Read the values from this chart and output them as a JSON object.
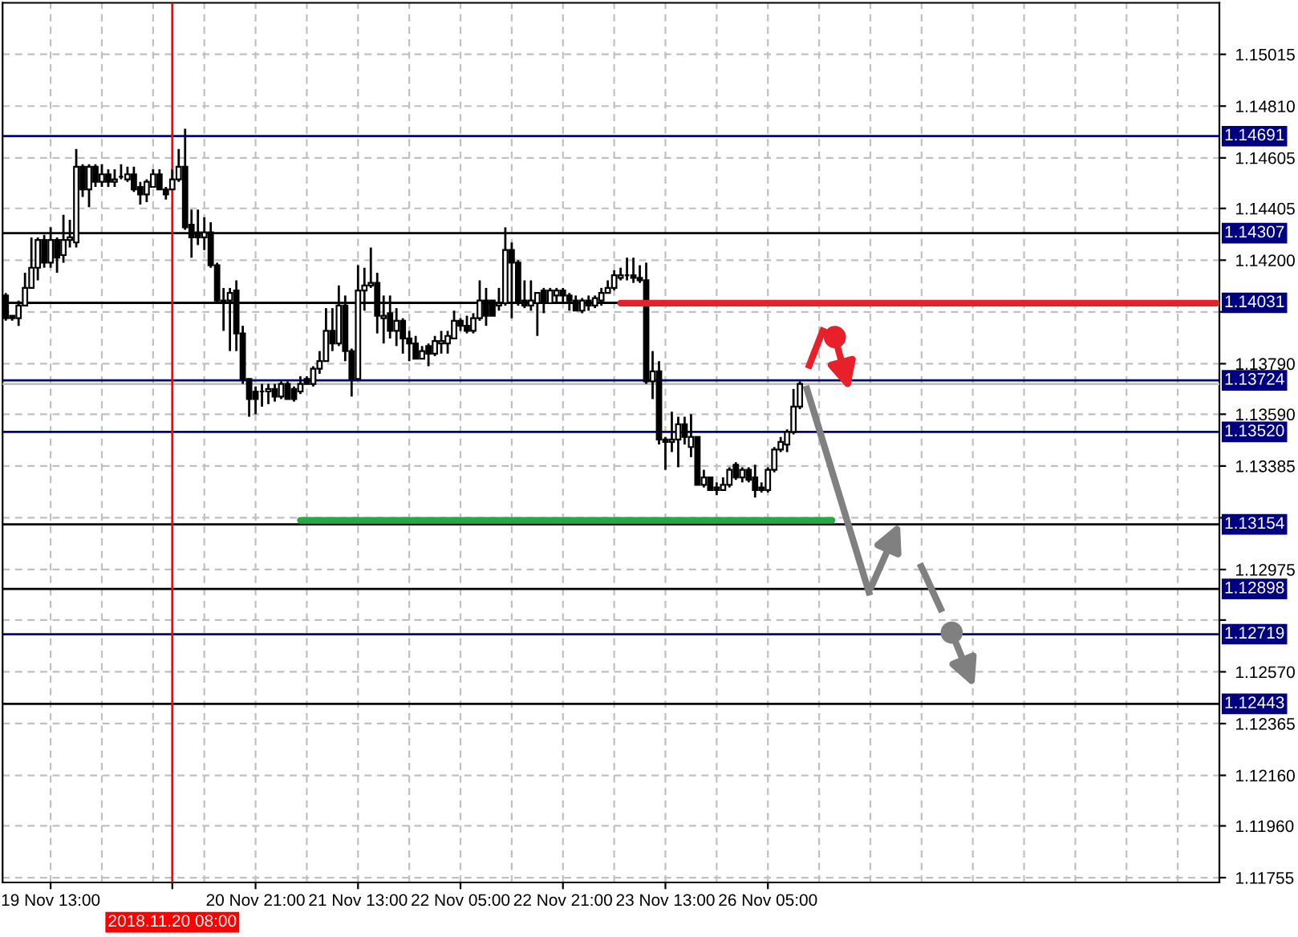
{
  "chart_data": {
    "type": "candlestick",
    "categories": [
      null,
      null,
      null,
      null,
      null,
      null,
      null,
      "19 Nov 13:00",
      null,
      null,
      null,
      null,
      null,
      null,
      null,
      null,
      null,
      null,
      null,
      null,
      null,
      null,
      null,
      null,
      null,
      null,
      "2018.11.20 08:00",
      null,
      null,
      null,
      null,
      null,
      null,
      null,
      null,
      null,
      null,
      null,
      null,
      "20 Nov 21:00",
      null,
      null,
      null,
      null,
      null,
      null,
      null,
      null,
      null,
      null,
      null,
      null,
      null,
      null,
      null,
      "21 Nov 13:00",
      null,
      null,
      null,
      null,
      null,
      null,
      null,
      null,
      null,
      null,
      null,
      null,
      null,
      null,
      null,
      "22 Nov 05:00",
      null,
      null,
      null,
      null,
      null,
      null,
      null,
      null,
      null,
      null,
      null,
      null,
      null,
      null,
      null,
      "22 Nov 21:00",
      null,
      null,
      null,
      null,
      null,
      null,
      null,
      null,
      null,
      null,
      null,
      null,
      null,
      null,
      null,
      "23 Nov 13:00",
      null,
      null,
      null,
      null,
      null,
      null,
      null,
      null,
      null,
      null,
      null,
      null,
      null,
      null,
      null,
      "26 Nov 05:00",
      null,
      null,
      null,
      null,
      null,
      null,
      null,
      null,
      null,
      null,
      null,
      null,
      null,
      null,
      null,
      null,
      null,
      null,
      null,
      null,
      null,
      null,
      null,
      null,
      null,
      null,
      null,
      null,
      null,
      null,
      null,
      null,
      null,
      null,
      null,
      null,
      null,
      null,
      null,
      null,
      null,
      null,
      null,
      null,
      null,
      null,
      null,
      null,
      null,
      null,
      null,
      null,
      null,
      null,
      null,
      null,
      null,
      null,
      null,
      null,
      null,
      null,
      null,
      null,
      null,
      null,
      null,
      null,
      null,
      null
    ],
    "ohlc": [
      [
        1.1406,
        1.1407,
        1.1396,
        1.1397
      ],
      [
        1.1398,
        1.1398,
        1.1396,
        1.1397
      ],
      [
        1.1397,
        1.1404,
        1.1394,
        1.1402
      ],
      [
        1.1402,
        1.1415,
        1.1402,
        1.1409
      ],
      [
        1.1409,
        1.1429,
        1.1409,
        1.1417
      ],
      [
        1.1417,
        1.1429,
        1.1412,
        1.1428
      ],
      [
        1.1428,
        1.143,
        1.1417,
        1.1419
      ],
      [
        1.1419,
        1.1433,
        1.1417,
        1.1428
      ],
      [
        1.1428,
        1.1429,
        1.1415,
        1.1421
      ],
      [
        1.1422,
        1.1438,
        1.1419,
        1.1428
      ],
      [
        1.1428,
        1.1436,
        1.1425,
        1.1429
      ],
      [
        1.1427,
        1.1464,
        1.1425,
        1.1457
      ],
      [
        1.1457,
        1.1458,
        1.1445,
        1.1448
      ],
      [
        1.1448,
        1.1458,
        1.1441,
        1.1457
      ],
      [
        1.1457,
        1.1458,
        1.1449,
        1.1451
      ],
      [
        1.1451,
        1.1458,
        1.1449,
        1.1454
      ],
      [
        1.1454,
        1.1456,
        1.1449,
        1.1451
      ],
      [
        1.1451,
        1.1456,
        1.1449,
        1.1452
      ],
      [
        1.1453,
        1.1458,
        1.1452,
        1.1453
      ],
      [
        1.1452,
        1.1457,
        1.1451,
        1.1454
      ],
      [
        1.1454,
        1.1457,
        1.1447,
        1.1448
      ],
      [
        1.1449,
        1.1451,
        1.1442,
        1.1446
      ],
      [
        1.1446,
        1.1452,
        1.1443,
        1.1451
      ],
      [
        1.1449,
        1.1456,
        1.1449,
        1.1454
      ],
      [
        1.1454,
        1.1456,
        1.1448,
        1.1448
      ],
      [
        1.1448,
        1.1449,
        1.1444,
        1.1446
      ],
      [
        1.1448,
        1.1456,
        1.1448,
        1.1452
      ],
      [
        1.1452,
        1.1464,
        1.1451,
        1.1457
      ],
      [
        1.1457,
        1.1472,
        1.1432,
        1.1433
      ],
      [
        1.1434,
        1.144,
        1.1421,
        1.1429
      ],
      [
        1.1431,
        1.144,
        1.1426,
        1.1429
      ],
      [
        1.1429,
        1.1437,
        1.1424,
        1.1431
      ],
      [
        1.1431,
        1.1435,
        1.1417,
        1.1418
      ],
      [
        1.1418,
        1.1419,
        1.1403,
        1.1404
      ],
      [
        1.1404,
        1.1409,
        1.1392,
        1.1403
      ],
      [
        1.1404,
        1.1409,
        1.1384,
        1.1407
      ],
      [
        1.1408,
        1.1412,
        1.1384,
        1.1391
      ],
      [
        1.1391,
        1.1394,
        1.1371,
        1.1373
      ],
      [
        1.1373,
        1.1373,
        1.1358,
        1.1365
      ],
      [
        1.1368,
        1.137,
        1.1359,
        1.1365
      ],
      [
        1.1368,
        1.1371,
        1.1362,
        1.1368
      ],
      [
        1.1368,
        1.1371,
        1.1363,
        1.1369
      ],
      [
        1.1369,
        1.1371,
        1.1364,
        1.1366
      ],
      [
        1.1366,
        1.1372,
        1.1365,
        1.1371
      ],
      [
        1.1371,
        1.1372,
        1.1365,
        1.1365
      ],
      [
        1.1369,
        1.137,
        1.1364,
        1.1365
      ],
      [
        1.1368,
        1.1374,
        1.1367,
        1.1371
      ],
      [
        1.1373,
        1.1374,
        1.1371,
        1.1371
      ],
      [
        1.1371,
        1.1378,
        1.137,
        1.1377
      ],
      [
        1.1377,
        1.1384,
        1.1375,
        1.138
      ],
      [
        1.138,
        1.1401,
        1.138,
        1.1392
      ],
      [
        1.1392,
        1.1401,
        1.1384,
        1.1387
      ],
      [
        1.1387,
        1.141,
        1.1386,
        1.1402
      ],
      [
        1.1402,
        1.1406,
        1.138,
        1.1384
      ],
      [
        1.1384,
        1.1385,
        1.1366,
        1.1373
      ],
      [
        1.1373,
        1.1418,
        1.1373,
        1.1408
      ],
      [
        1.1408,
        1.1417,
        1.14,
        1.141
      ],
      [
        1.141,
        1.1425,
        1.1409,
        1.1411
      ],
      [
        1.1411,
        1.1415,
        1.1391,
        1.1398
      ],
      [
        1.1397,
        1.1406,
        1.1387,
        1.1398
      ],
      [
        1.1399,
        1.1406,
        1.1389,
        1.1392
      ],
      [
        1.1392,
        1.1401,
        1.1386,
        1.1396
      ],
      [
        1.1396,
        1.1397,
        1.1383,
        1.1389
      ],
      [
        1.1389,
        1.1392,
        1.138,
        1.1387
      ],
      [
        1.1387,
        1.139,
        1.1381,
        1.1381
      ],
      [
        1.1381,
        1.1386,
        1.1381,
        1.1384
      ],
      [
        1.1386,
        1.1387,
        1.1378,
        1.1383
      ],
      [
        1.1383,
        1.139,
        1.1382,
        1.1388
      ],
      [
        1.1387,
        1.1392,
        1.1383,
        1.1388
      ],
      [
        1.1387,
        1.1392,
        1.1383,
        1.139
      ],
      [
        1.1389,
        1.14,
        1.1389,
        1.1396
      ],
      [
        1.1396,
        1.1397,
        1.1392,
        1.1394
      ],
      [
        1.1394,
        1.1398,
        1.1391,
        1.1392
      ],
      [
        1.1392,
        1.1399,
        1.1391,
        1.1397
      ],
      [
        1.1397,
        1.1412,
        1.1396,
        1.1404
      ],
      [
        1.1404,
        1.1409,
        1.1394,
        1.1398
      ],
      [
        1.1404,
        1.1404,
        1.1398,
        1.1398
      ],
      [
        1.1402,
        1.1409,
        1.14,
        1.1403
      ],
      [
        1.1403,
        1.1433,
        1.1402,
        1.1424
      ],
      [
        1.1424,
        1.1427,
        1.1397,
        1.1419
      ],
      [
        1.1419,
        1.142,
        1.1402,
        1.1403
      ],
      [
        1.1404,
        1.1412,
        1.1401,
        1.1402
      ],
      [
        1.1402,
        1.1412,
        1.14,
        1.1404
      ],
      [
        1.1403,
        1.1407,
        1.139,
        1.1407
      ],
      [
        1.1408,
        1.1409,
        1.1399,
        1.1403
      ],
      [
        1.1403,
        1.1409,
        1.1403,
        1.1408
      ],
      [
        1.1406,
        1.1409,
        1.1403,
        1.1408
      ],
      [
        1.1408,
        1.1409,
        1.1403,
        1.1406
      ],
      [
        1.1406,
        1.1407,
        1.14,
        1.1404
      ],
      [
        1.1404,
        1.1406,
        1.14,
        1.14
      ],
      [
        1.14,
        1.1405,
        1.1399,
        1.1404
      ],
      [
        1.1404,
        1.1406,
        1.14,
        1.1402
      ],
      [
        1.1402,
        1.1406,
        1.1401,
        1.1405
      ],
      [
        1.1404,
        1.1409,
        1.1402,
        1.1407
      ],
      [
        1.1407,
        1.1412,
        1.1407,
        1.1409
      ],
      [
        1.1409,
        1.1416,
        1.1408,
        1.1414
      ],
      [
        1.1413,
        1.1417,
        1.1412,
        1.1414
      ],
      [
        1.1414,
        1.1421,
        1.1412,
        1.1414
      ],
      [
        1.1414,
        1.1421,
        1.1411,
        1.1413
      ],
      [
        1.1413,
        1.1418,
        1.1411,
        1.1412
      ],
      [
        1.1412,
        1.1419,
        1.1371,
        1.1372
      ],
      [
        1.1372,
        1.1384,
        1.1365,
        1.1376
      ],
      [
        1.1376,
        1.138,
        1.1347,
        1.1349
      ],
      [
        1.1349,
        1.135,
        1.1337,
        1.1348
      ],
      [
        1.1348,
        1.136,
        1.1344,
        1.1349
      ],
      [
        1.1349,
        1.1358,
        1.1338,
        1.1355
      ],
      [
        1.1355,
        1.1358,
        1.1347,
        1.135
      ],
      [
        1.1346,
        1.1359,
        1.1342,
        1.135
      ],
      [
        1.135,
        1.135,
        1.1331,
        1.1331
      ],
      [
        1.1331,
        1.1337,
        1.133,
        1.1334
      ],
      [
        1.1334,
        1.1334,
        1.1329,
        1.1329
      ],
      [
        1.133,
        1.1332,
        1.1327,
        1.1329
      ],
      [
        1.1329,
        1.1334,
        1.1329,
        1.1331
      ],
      [
        1.1331,
        1.1338,
        1.133,
        1.1337
      ],
      [
        1.1339,
        1.134,
        1.1333,
        1.1334
      ],
      [
        1.1334,
        1.1338,
        1.1332,
        1.1337
      ],
      [
        1.1337,
        1.1338,
        1.1332,
        1.1333
      ],
      [
        1.1334,
        1.1339,
        1.1326,
        1.1329
      ],
      [
        1.133,
        1.1332,
        1.1328,
        1.1329
      ],
      [
        1.1329,
        1.1338,
        1.1328,
        1.1337
      ],
      [
        1.1337,
        1.1346,
        1.1336,
        1.1345
      ],
      [
        1.1345,
        1.135,
        1.1344,
        1.1348
      ],
      [
        1.1347,
        1.1353,
        1.1344,
        1.1352
      ],
      [
        1.1352,
        1.1369,
        1.1351,
        1.1362
      ],
      [
        1.1362,
        1.1372,
        1.1361,
        1.1371
      ],
      null,
      null,
      null,
      null,
      null,
      null,
      null,
      null,
      null,
      null,
      null,
      null,
      null,
      null,
      null,
      null,
      null,
      null,
      null,
      null,
      null,
      null,
      null,
      null,
      null,
      null,
      null,
      null,
      null,
      null,
      null,
      null,
      null,
      null,
      null,
      null,
      null,
      null,
      null,
      null,
      null,
      null,
      null,
      null,
      null,
      null,
      null,
      null,
      null,
      null,
      null,
      null,
      null,
      null,
      null,
      null,
      null,
      null,
      null,
      null,
      null,
      null,
      null,
      null,
      null
    ],
    "series": [
      {
        "type": "line",
        "color": "#e8202a",
        "values": [
          null,
          null,
          null,
          null,
          null,
          null,
          null,
          null,
          null,
          null,
          null,
          null,
          null,
          null,
          null,
          null,
          null,
          null,
          null,
          null,
          null,
          null,
          null,
          null,
          null,
          null,
          null,
          null,
          null,
          null,
          null,
          null,
          null,
          null,
          null,
          null,
          null,
          null,
          null,
          null,
          null,
          null,
          null,
          null,
          null,
          null,
          null,
          null,
          null,
          null,
          null,
          null,
          null,
          null,
          null,
          null,
          null,
          null,
          null,
          null,
          null,
          null,
          null,
          null,
          null,
          null,
          null,
          null,
          null,
          null,
          null,
          null,
          null,
          null,
          null,
          null,
          null,
          null,
          null,
          null,
          null,
          null,
          null,
          null,
          null,
          null,
          null,
          null,
          null,
          null,
          null,
          null,
          null,
          null,
          null,
          null,
          1.1403,
          1.1403,
          1.1403,
          1.1403,
          1.1403,
          1.1403,
          1.1403,
          1.1403,
          1.1403,
          1.1403,
          1.1403,
          1.1403,
          1.1403,
          1.1403,
          1.1403,
          1.1403,
          1.1403,
          1.1403,
          1.1403,
          1.1403,
          1.1403,
          1.1403,
          1.1403,
          1.1403,
          1.1403,
          1.1403,
          1.1403,
          1.1403,
          1.1403,
          1.1403,
          1.1403,
          1.1403,
          1.1403,
          1.1403,
          1.1403,
          1.1403,
          1.1403,
          1.1403,
          1.1403,
          1.1403,
          1.1403,
          1.1403,
          1.1403,
          1.1403,
          1.1403,
          1.1403,
          1.1403,
          1.1403,
          1.1403,
          1.1403,
          1.1403,
          1.1403,
          1.1403,
          1.1403,
          1.1403,
          1.1403,
          1.1403,
          1.1403,
          1.1403,
          1.1403,
          1.1403,
          1.1403,
          1.1403,
          1.1403,
          1.1403,
          1.1403,
          1.1403,
          1.1403,
          1.1403,
          1.1403,
          1.1403,
          1.1403,
          1.1403,
          1.1403,
          1.1403,
          1.1403,
          1.1403,
          1.1403,
          1.1403,
          1.1403,
          1.1403,
          1.1403,
          1.1403,
          1.1403,
          1.1403,
          1.1403,
          1.1403,
          1.1403,
          1.1403,
          1.1403,
          1.1403,
          1.1403,
          1.1403,
          1.1403
        ]
      },
      {
        "type": "line",
        "color": "#22aa44",
        "values": [
          null,
          null,
          null,
          null,
          null,
          null,
          null,
          null,
          null,
          null,
          null,
          null,
          null,
          null,
          null,
          null,
          null,
          null,
          null,
          null,
          null,
          null,
          null,
          null,
          null,
          null,
          null,
          null,
          null,
          null,
          null,
          null,
          null,
          null,
          null,
          null,
          null,
          null,
          null,
          null,
          null,
          null,
          null,
          null,
          null,
          null,
          1.1317,
          1.1317,
          1.1317,
          1.1317,
          1.1317,
          1.1317,
          1.1317,
          1.1317,
          1.1317,
          1.1317,
          1.1317,
          1.1317,
          1.1317,
          1.1317,
          1.1317,
          1.1317,
          1.1317,
          1.1317,
          1.1317,
          1.1317,
          1.1317,
          1.1317,
          1.1317,
          1.1317,
          1.1317,
          1.1317,
          1.1317,
          1.1317,
          1.1317,
          1.1317,
          1.1317,
          1.1317,
          1.1317,
          1.1317,
          1.1317,
          1.1317,
          1.1317,
          1.1317,
          1.1317,
          1.1317,
          1.1317,
          1.1317,
          1.1317,
          1.1317,
          1.1317,
          1.1317,
          1.1317,
          1.1317,
          1.1317,
          1.1317,
          1.1317,
          1.1317,
          1.1317,
          1.1317,
          1.1317,
          1.1317,
          1.1317,
          1.1317,
          1.1317,
          1.1317,
          1.1317,
          1.1317,
          1.1317,
          1.1317,
          1.1317,
          1.1317,
          1.1317,
          1.1317,
          1.1317,
          1.1317,
          1.1317,
          1.1317,
          1.1317,
          1.1317,
          1.1317,
          1.1317,
          1.1317,
          1.1317,
          1.1317,
          1.1317,
          1.1317,
          1.1317,
          1.1317,
          1.1317,
          null,
          null,
          null,
          null,
          null,
          null,
          null,
          null,
          null,
          null,
          null,
          null,
          null,
          null,
          null,
          null,
          null,
          null,
          null,
          null,
          null,
          null,
          null,
          null,
          null,
          null,
          null,
          null,
          null,
          null,
          null,
          null,
          null,
          null,
          null,
          null,
          null,
          null,
          null,
          null,
          null,
          null,
          null,
          null,
          null,
          null,
          null,
          null,
          null,
          null,
          null,
          null,
          null,
          null,
          null,
          null,
          null,
          null,
          null,
          null
        ]
      }
    ],
    "ylim": [
      1.11736,
      1.15219
    ],
    "yticks": [
      1.15015,
      {
        "value": 1.1481,
        "label": "1.14810"
      },
      1.14605,
      1.14405,
      {
        "value": 1.142,
        "label": "1.14200"
      },
      {
        "value": 1.13995,
        "label": null
      },
      {
        "value": 1.1379,
        "label": "1.13790"
      },
      {
        "value": 1.1359,
        "label": "1.13590"
      },
      1.13385,
      {
        "value": 1.1318,
        "label": null
      },
      1.12975,
      {
        "value": 1.12775,
        "label": null
      },
      {
        "value": 1.1257,
        "label": "1.12570"
      },
      1.12365,
      {
        "value": 1.1216,
        "label": "1.12160"
      },
      {
        "value": 1.1196,
        "label": "1.11960"
      },
      1.11755
    ],
    "ref_lines": [
      {
        "axis": "x",
        "value": "2018.11.20 08:00",
        "color": "#ff0000"
      },
      {
        "axis": "y",
        "value": 1.14691,
        "label": "1.14691",
        "color": "#000080"
      },
      {
        "axis": "y",
        "value": 1.14307,
        "label": "1.14307",
        "color": "#000000"
      },
      {
        "axis": "y",
        "value": 1.14031,
        "label": "1.14031",
        "color": "#000000"
      },
      {
        "axis": "y",
        "value": 1.13724,
        "label": "1.13724",
        "color": "#000080"
      },
      {
        "axis": "y",
        "value": 1.1371,
        "color": "#c0c0c0"
      },
      {
        "axis": "y",
        "value": 1.1352,
        "label": "1.13520",
        "color": "#000080"
      },
      {
        "axis": "y",
        "value": 1.13154,
        "label": "1.13154",
        "color": "#000000"
      },
      {
        "axis": "y",
        "value": 1.12898,
        "label": "1.12898",
        "color": "#000000"
      },
      {
        "axis": "y",
        "value": 1.12719,
        "label": "1.12719",
        "color": "#000080"
      },
      {
        "axis": "y",
        "value": 1.12443,
        "label": "1.12443",
        "color": "#000000"
      }
    ],
    "grid": true
  }
}
